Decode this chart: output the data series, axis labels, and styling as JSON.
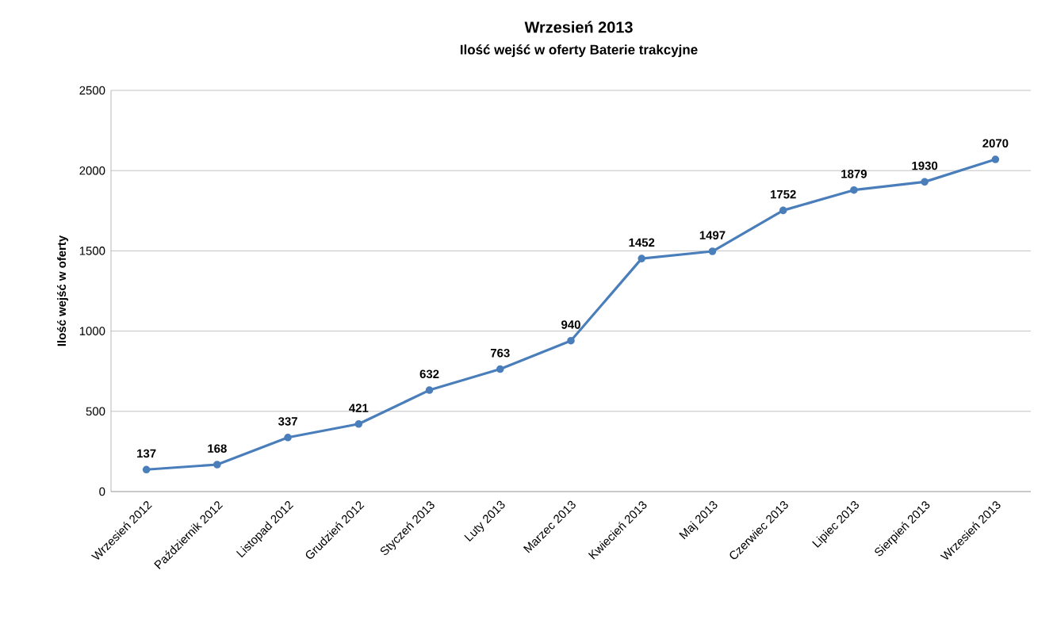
{
  "chart_data": {
    "type": "line",
    "title": "Wrzesień 2013",
    "subtitle": "Ilość wejść w oferty Baterie trakcyjne",
    "ylabel": "Ilość wejść w oferty",
    "categories": [
      "Wrzesień 2012",
      "Październik 2012",
      "Listopad 2012",
      "Grudzień 2012",
      "Styczeń 2013",
      "Luty 2013",
      "Marzec 2013",
      "Kwiecień 2013",
      "Maj 2013",
      "Czerwiec 2013",
      "Lipiec 2013",
      "Sierpień 2013",
      "Wrzesień 2013"
    ],
    "series": [
      {
        "color": "#4a7ebb",
        "values": [
          137,
          168,
          337,
          421,
          632,
          763,
          940,
          1452,
          1497,
          1752,
          1879,
          1930,
          2070
        ]
      }
    ],
    "ylim": [
      0,
      2500
    ],
    "yticks": [
      0,
      500,
      1000,
      1500,
      2000,
      2500
    ],
    "grid": "y",
    "marker": "circle",
    "data_labels": true
  }
}
